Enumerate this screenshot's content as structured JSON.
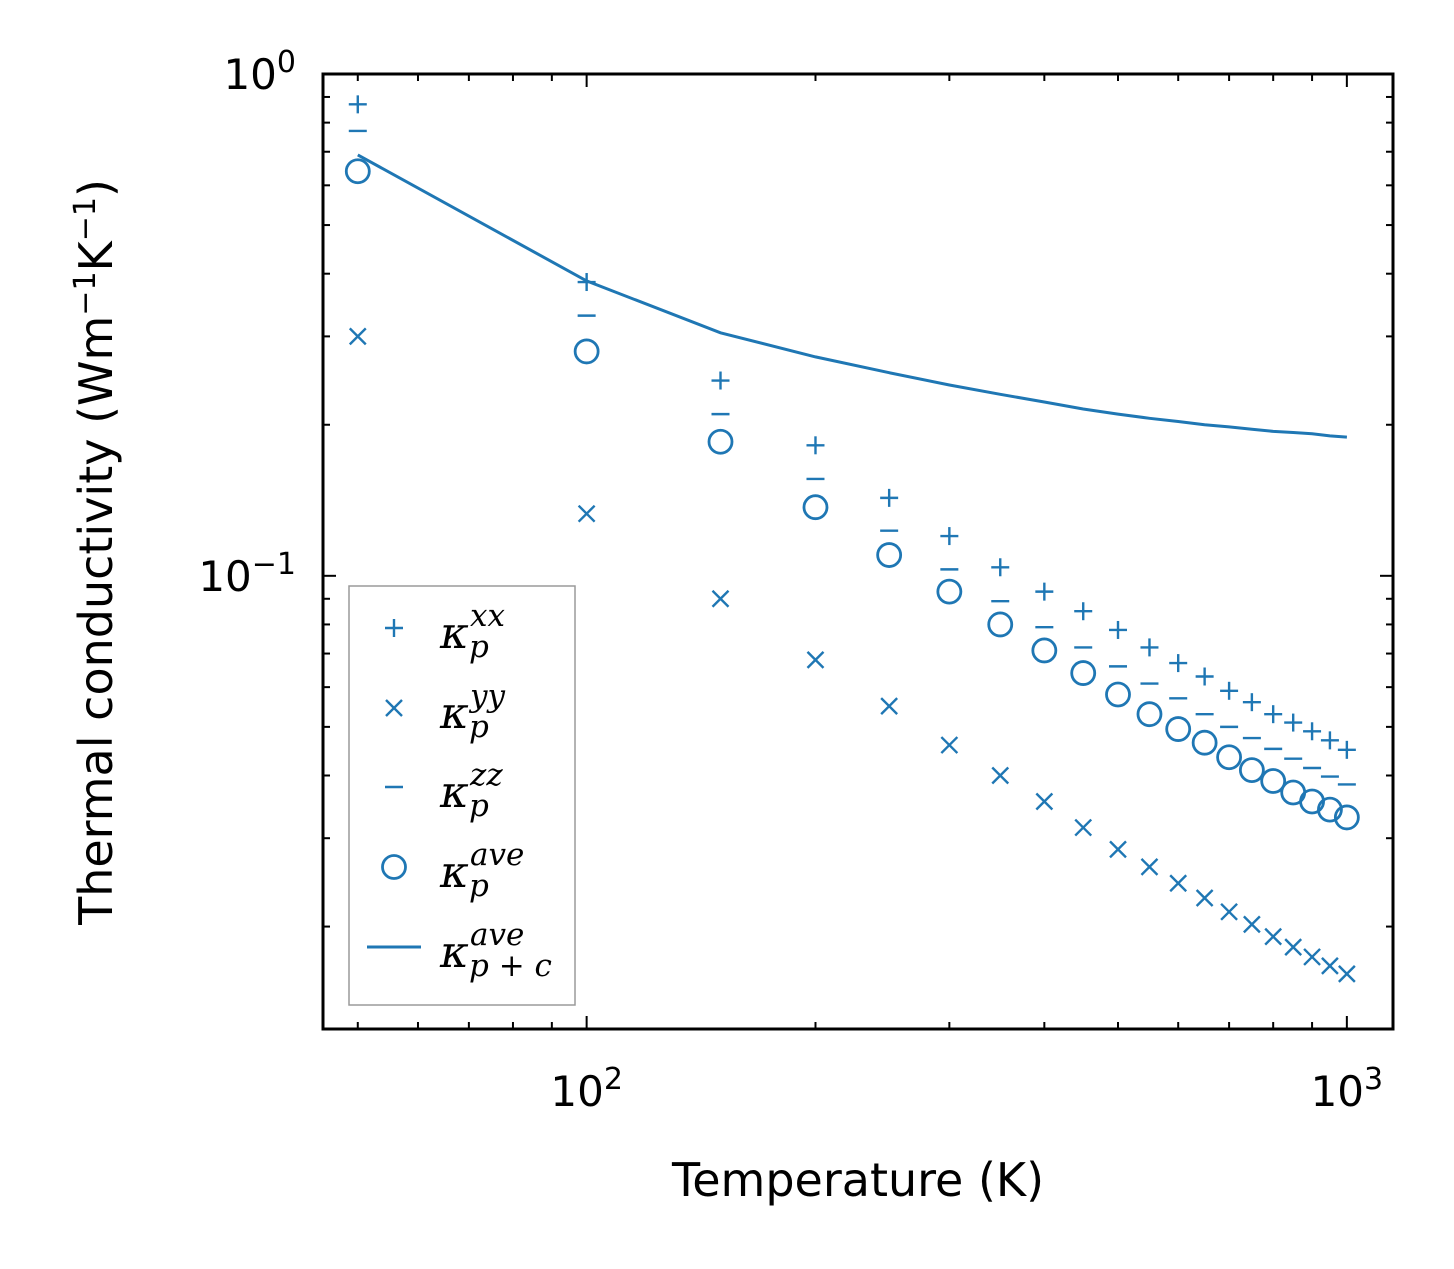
{
  "chart_data": {
    "type": "scatter",
    "xscale": "log",
    "yscale": "log",
    "xlabel": "Temperature (K)",
    "ylabel": "Thermal conductivity (Wm",
    "ylabel_unit_parts": [
      "Thermal conductivity (Wm",
      "−1",
      "K",
      "−1",
      ")"
    ],
    "xlim": [
      45,
      1150
    ],
    "ylim": [
      0.0125,
      1.0
    ],
    "xticks": [
      {
        "value": 100,
        "base": "10",
        "exp": "2"
      },
      {
        "value": 1000,
        "base": "10",
        "exp": "3"
      }
    ],
    "yticks": [
      {
        "value": 0.1,
        "base": "10",
        "exp": "−1"
      },
      {
        "value": 1.0,
        "base": "10",
        "exp": "0"
      }
    ],
    "color": "#1f77b4",
    "x": [
      50,
      100,
      150,
      200,
      250,
      300,
      350,
      400,
      450,
      500,
      550,
      600,
      650,
      700,
      750,
      800,
      850,
      900,
      950,
      1000
    ],
    "series": [
      {
        "name": "kappa_p_xx",
        "marker": "plus",
        "values": [
          0.87,
          0.385,
          0.245,
          0.182,
          0.143,
          0.12,
          0.104,
          0.093,
          0.085,
          0.078,
          0.072,
          0.067,
          0.063,
          0.059,
          0.056,
          0.053,
          0.051,
          0.049,
          0.047,
          0.045
        ]
      },
      {
        "name": "kappa_p_yy",
        "marker": "x",
        "values": [
          0.3,
          0.133,
          0.09,
          0.068,
          0.055,
          0.046,
          0.04,
          0.0355,
          0.0315,
          0.0285,
          0.0263,
          0.0244,
          0.0228,
          0.0214,
          0.0202,
          0.0191,
          0.0182,
          0.0174,
          0.0167,
          0.0161
        ]
      },
      {
        "name": "kappa_p_zz",
        "marker": "minus",
        "values": [
          0.77,
          0.33,
          0.21,
          0.156,
          0.123,
          0.103,
          0.089,
          0.079,
          0.072,
          0.066,
          0.061,
          0.057,
          0.053,
          0.05,
          0.0475,
          0.0452,
          0.0432,
          0.0414,
          0.0398,
          0.0384
        ]
      },
      {
        "name": "kappa_p_ave",
        "marker": "circle",
        "values": [
          0.64,
          0.28,
          0.185,
          0.137,
          0.11,
          0.093,
          0.08,
          0.071,
          0.064,
          0.058,
          0.053,
          0.0495,
          0.0465,
          0.0435,
          0.041,
          0.039,
          0.037,
          0.0355,
          0.0342,
          0.033
        ]
      },
      {
        "name": "kappa_p_c_ave",
        "marker": "line",
        "values": [
          0.69,
          0.387,
          0.305,
          0.273,
          0.254,
          0.24,
          0.23,
          0.222,
          0.215,
          0.21,
          0.206,
          0.203,
          0.2,
          0.198,
          0.196,
          0.194,
          0.193,
          0.192,
          0.19,
          0.189
        ]
      }
    ],
    "legend": {
      "placement": "lower-left",
      "entries": [
        {
          "symbol": "κ",
          "sub": "p",
          "sup": "xx"
        },
        {
          "symbol": "κ",
          "sub": "p",
          "sup": "yy"
        },
        {
          "symbol": "κ",
          "sub": "p",
          "sup": "zz"
        },
        {
          "symbol": "κ",
          "sub": "p",
          "sup": "ave"
        },
        {
          "symbol": "κ",
          "sub": "p + c",
          "sup": "ave"
        }
      ]
    }
  }
}
